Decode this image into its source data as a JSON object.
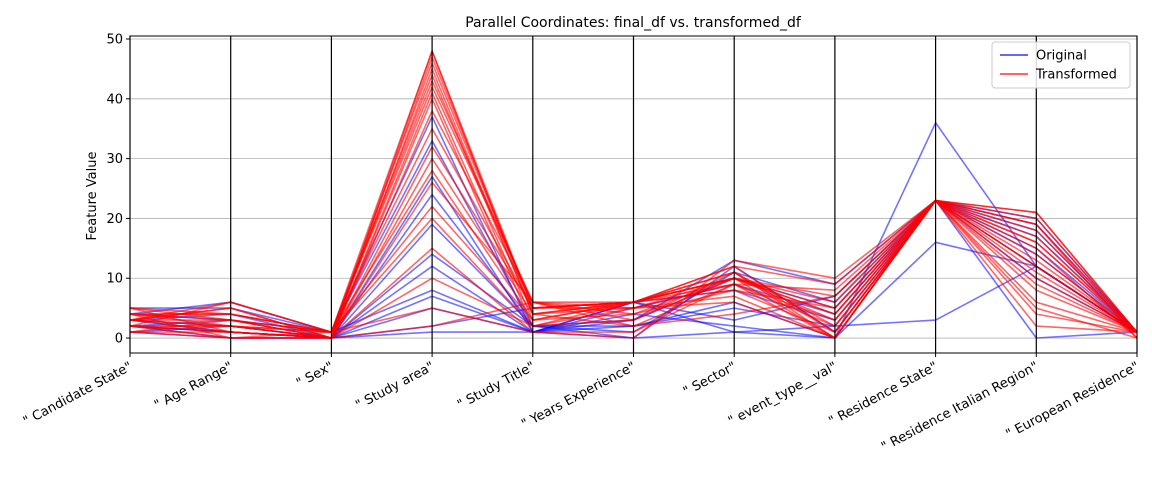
{
  "chart_data": {
    "type": "parallel_coordinates",
    "title": "Parallel Coordinates: final_df vs. transformed_df",
    "ylabel": "Feature Value",
    "xlabel": "",
    "ylim": [
      -2.5,
      50.5
    ],
    "yticks": [
      0,
      10,
      20,
      30,
      40,
      50
    ],
    "grid": true,
    "legend_position": "top-right",
    "categories": [
      "\" Candidate State\"",
      "\" Age Range\"",
      "\" Sex\"",
      "\" Study area\"",
      "\" Study Title\"",
      "\" Years Experience\"",
      "\" Sector\"",
      "\" event_type__val\"",
      "\" Residence State\"",
      "\" Residence Italian Region\"",
      "\" European Residence\""
    ],
    "series": [
      {
        "name": "Original",
        "color": "#0000ff",
        "lines": [
          [
            2,
            1,
            0,
            5,
            1,
            0,
            1,
            0,
            23,
            12,
            1
          ],
          [
            3,
            2,
            0,
            14,
            2,
            3,
            10,
            5,
            23,
            15,
            1
          ],
          [
            1,
            0,
            0,
            27,
            1,
            6,
            8,
            3,
            23,
            18,
            1
          ],
          [
            4,
            3,
            1,
            8,
            1,
            2,
            5,
            2,
            23,
            10,
            1
          ],
          [
            2,
            1,
            0,
            19,
            2,
            1,
            11,
            6,
            23,
            20,
            1
          ],
          [
            3,
            4,
            0,
            12,
            1,
            4,
            2,
            0,
            16,
            12,
            1
          ],
          [
            1,
            2,
            0,
            7,
            1,
            5,
            9,
            4,
            23,
            14,
            1
          ],
          [
            5,
            5,
            1,
            33,
            2,
            0,
            12,
            1,
            23,
            0,
            1
          ],
          [
            2,
            0,
            0,
            1,
            1,
            6,
            3,
            7,
            23,
            17,
            1
          ],
          [
            3,
            1,
            0,
            24,
            2,
            2,
            6,
            0,
            36,
            12,
            1
          ],
          [
            4,
            6,
            1,
            37,
            1,
            3,
            13,
            9,
            23,
            19,
            1
          ],
          [
            2,
            3,
            0,
            2,
            5,
            6,
            1,
            2,
            3,
            12,
            1
          ]
        ]
      },
      {
        "name": "Transformed",
        "color": "#ff0000",
        "lines": [
          [
            3,
            2,
            1,
            48,
            5,
            6,
            10,
            3,
            23,
            21,
            1
          ],
          [
            2,
            1,
            0,
            45,
            4,
            5,
            9,
            2,
            23,
            19,
            0
          ],
          [
            4,
            3,
            1,
            42,
            6,
            6,
            11,
            0,
            23,
            16,
            1
          ],
          [
            1,
            0,
            0,
            41,
            3,
            4,
            8,
            5,
            23,
            20,
            1
          ],
          [
            5,
            4,
            1,
            46,
            5,
            6,
            12,
            1,
            23,
            13,
            1
          ],
          [
            3,
            5,
            0,
            40,
            2,
            3,
            10,
            6,
            23,
            9,
            1
          ],
          [
            2,
            6,
            1,
            43,
            6,
            5,
            7,
            0,
            23,
            15,
            0
          ],
          [
            4,
            2,
            0,
            32,
            5,
            6,
            10,
            4,
            23,
            6,
            1
          ],
          [
            1,
            1,
            0,
            30,
            4,
            2,
            9,
            8,
            23,
            18,
            1
          ],
          [
            3,
            3,
            1,
            28,
            3,
            6,
            11,
            2,
            23,
            11,
            1
          ],
          [
            2,
            0,
            0,
            47,
            5,
            5,
            10,
            7,
            23,
            4,
            1
          ],
          [
            4,
            4,
            1,
            44,
            4,
            6,
            8,
            1,
            23,
            17,
            1
          ],
          [
            5,
            1,
            0,
            38,
            6,
            4,
            10,
            0,
            23,
            2,
            1
          ],
          [
            3,
            6,
            1,
            35,
            5,
            6,
            12,
            9,
            23,
            12,
            1
          ],
          [
            2,
            2,
            0,
            15,
            1,
            1,
            9,
            3,
            23,
            21,
            1
          ],
          [
            1,
            3,
            0,
            10,
            2,
            5,
            6,
            0,
            23,
            8,
            1
          ],
          [
            4,
            0,
            1,
            22,
            3,
            6,
            10,
            5,
            23,
            14,
            1
          ],
          [
            3,
            5,
            0,
            26,
            6,
            3,
            11,
            1,
            23,
            19,
            1
          ],
          [
            2,
            2,
            1,
            5,
            1,
            0,
            13,
            10,
            23,
            12,
            1
          ],
          [
            5,
            3,
            0,
            48,
            4,
            6,
            10,
            4,
            23,
            10,
            1
          ],
          [
            3,
            1,
            0,
            2,
            6,
            2,
            4,
            7,
            23,
            16,
            1
          ],
          [
            4,
            4,
            1,
            20,
            2,
            6,
            9,
            0,
            23,
            5,
            0
          ]
        ]
      }
    ]
  }
}
